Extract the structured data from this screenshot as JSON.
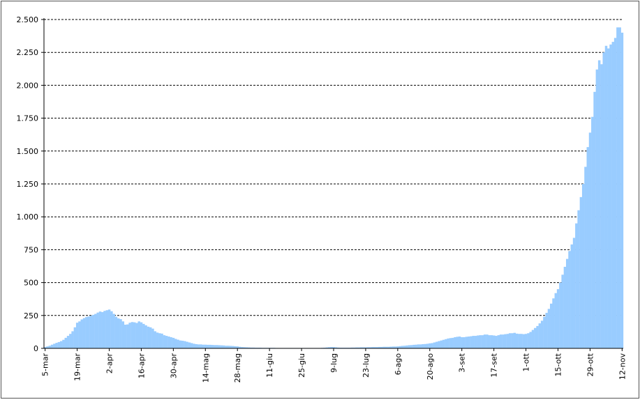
{
  "chart_data": {
    "type": "bar",
    "color": "#99ccff",
    "grid": true,
    "categories": [
      "5-mar",
      null,
      null,
      null,
      null,
      null,
      null,
      null,
      null,
      null,
      null,
      null,
      null,
      null,
      "19-mar",
      null,
      null,
      null,
      null,
      null,
      null,
      null,
      null,
      null,
      null,
      null,
      null,
      null,
      "2-apr",
      null,
      null,
      null,
      null,
      null,
      null,
      null,
      null,
      null,
      null,
      null,
      null,
      null,
      "16-apr",
      null,
      null,
      null,
      null,
      null,
      null,
      null,
      null,
      null,
      null,
      null,
      null,
      null,
      "30-apr",
      null,
      null,
      null,
      null,
      null,
      null,
      null,
      null,
      null,
      null,
      null,
      null,
      null,
      "14-mag",
      null,
      null,
      null,
      null,
      null,
      null,
      null,
      null,
      null,
      null,
      null,
      null,
      null,
      "28-mag",
      null,
      null,
      null,
      null,
      null,
      null,
      null,
      null,
      null,
      null,
      null,
      null,
      null,
      "11-giu",
      null,
      null,
      null,
      null,
      null,
      null,
      null,
      null,
      null,
      null,
      null,
      null,
      null,
      "25-giu",
      null,
      null,
      null,
      null,
      null,
      null,
      null,
      null,
      null,
      null,
      null,
      null,
      null,
      "9-lug",
      null,
      null,
      null,
      null,
      null,
      null,
      null,
      null,
      null,
      null,
      null,
      null,
      null,
      "23-lug",
      null,
      null,
      null,
      null,
      null,
      null,
      null,
      null,
      null,
      null,
      null,
      null,
      null,
      "6-ago",
      null,
      null,
      null,
      null,
      null,
      null,
      null,
      null,
      null,
      null,
      null,
      null,
      null,
      "20-ago",
      null,
      null,
      null,
      null,
      null,
      null,
      null,
      null,
      null,
      null,
      null,
      null,
      null,
      "3-set",
      null,
      null,
      null,
      null,
      null,
      null,
      null,
      null,
      null,
      null,
      null,
      null,
      null,
      "17-set",
      null,
      null,
      null,
      null,
      null,
      null,
      null,
      null,
      null,
      null,
      null,
      null,
      null,
      "1-ott",
      null,
      null,
      null,
      null,
      null,
      null,
      null,
      null,
      null,
      null,
      null,
      null,
      null,
      "15-ott",
      null,
      null,
      null,
      null,
      null,
      null,
      null,
      null,
      null,
      null,
      null,
      null,
      null,
      "29-ott",
      null,
      null,
      null,
      null,
      null,
      null,
      null,
      null,
      null,
      null,
      null,
      null,
      null,
      "12-nov"
    ],
    "values": [
      10,
      15,
      20,
      28,
      35,
      42,
      48,
      55,
      65,
      80,
      95,
      110,
      130,
      160,
      195,
      205,
      220,
      230,
      238,
      242,
      248,
      255,
      262,
      272,
      280,
      276,
      285,
      290,
      295,
      282,
      262,
      240,
      228,
      222,
      205,
      180,
      182,
      195,
      200,
      198,
      193,
      205,
      198,
      186,
      175,
      165,
      160,
      150,
      130,
      120,
      115,
      112,
      100,
      95,
      90,
      85,
      80,
      72,
      66,
      60,
      58,
      55,
      50,
      45,
      40,
      35,
      32,
      30,
      30,
      28,
      28,
      27,
      27,
      26,
      25,
      25,
      24,
      23,
      22,
      20,
      20,
      19,
      18,
      16,
      15,
      12,
      10,
      9,
      8,
      7,
      6,
      6,
      5,
      5,
      5,
      4,
      4,
      4,
      4,
      4,
      4,
      3,
      3,
      3,
      3,
      3,
      3,
      3,
      3,
      3,
      3,
      3,
      3,
      3,
      3,
      3,
      3,
      3,
      3,
      3,
      3,
      4,
      5,
      7,
      9,
      10,
      10,
      8,
      6,
      5,
      5,
      5,
      5,
      5,
      6,
      6,
      7,
      7,
      8,
      8,
      8,
      9,
      9,
      10,
      10,
      10,
      11,
      11,
      12,
      12,
      12,
      13,
      14,
      14,
      15,
      17,
      19,
      20,
      22,
      24,
      25,
      27,
      28,
      30,
      30,
      32,
      33,
      35,
      38,
      40,
      45,
      50,
      55,
      60,
      65,
      70,
      75,
      78,
      80,
      85,
      88,
      90,
      85,
      85,
      88,
      90,
      92,
      95,
      95,
      98,
      100,
      100,
      105,
      105,
      100,
      100,
      98,
      95,
      100,
      105,
      105,
      108,
      110,
      115,
      115,
      118,
      112,
      110,
      110,
      108,
      110,
      115,
      125,
      140,
      155,
      170,
      190,
      210,
      240,
      270,
      300,
      340,
      380,
      420,
      450,
      500,
      560,
      620,
      680,
      740,
      790,
      840,
      950,
      1050,
      1150,
      1250,
      1380,
      1530,
      1640,
      1760,
      1950,
      2120,
      2190,
      2160,
      2250,
      2300,
      2280,
      2310,
      2330,
      2360,
      2440,
      2440,
      2400
    ],
    "ylim": [
      0,
      2500
    ],
    "yticks": [
      0,
      250,
      500,
      750,
      {
        "value": 1000,
        "label": "1.000"
      },
      {
        "value": 1250,
        "label": "1.250"
      },
      {
        "value": 1500,
        "label": "1.500"
      },
      {
        "value": 1750,
        "label": "1.750"
      },
      {
        "value": 2000,
        "label": "2.000"
      },
      {
        "value": 2250,
        "label": "2.250"
      },
      {
        "value": 2500,
        "label": "2.500"
      }
    ]
  }
}
